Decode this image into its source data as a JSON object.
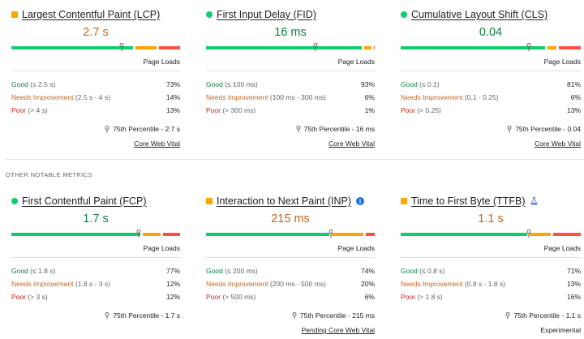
{
  "colors": {
    "good": "#0cce6b",
    "needs_improvement": "#ffa400",
    "poor": "#ff4e42",
    "value_good": "#0a8043",
    "value_ni": "#c4651d",
    "info_blue": "#1a73e8",
    "flask_blue": "#5b7ff2"
  },
  "section_header": "OTHER NOTABLE METRICS",
  "metrics": [
    {
      "title": "Largest Contentful Paint (LCP)",
      "indicator": "square",
      "status": "needs_improvement",
      "value": "2.7 s",
      "marker_fraction": 0.655,
      "segments": {
        "good": 0.73,
        "needs_improvement": 0.14,
        "poor": 0.13
      },
      "page_loads_label": "Page Loads",
      "good_label": "Good",
      "good_range": "(≤ 2.5 s)",
      "good_pct": "73%",
      "ni_label": "Needs Improvement",
      "ni_range": "(2.5 s - 4 s)",
      "ni_pct": "14%",
      "poor_label": "Poor",
      "poor_range": "(> 4 s)",
      "poor_pct": "13%",
      "percentile": "75th Percentile - 2.7 s",
      "footer": "Core Web Vital",
      "footer_link": true,
      "extra_icon": ""
    },
    {
      "title": "First Input Delay (FID)",
      "indicator": "circle",
      "status": "good",
      "value": "16 ms",
      "marker_fraction": 0.65,
      "segments": {
        "good": 0.93,
        "needs_improvement": 0.06,
        "poor": 0.01
      },
      "page_loads_label": "Page Loads",
      "good_label": "Good",
      "good_range": "(≤ 100 ms)",
      "good_pct": "93%",
      "ni_label": "Needs Improvement",
      "ni_range": "(100 ms - 300 ms)",
      "ni_pct": "6%",
      "poor_label": "Poor",
      "poor_range": "(> 300 ms)",
      "poor_pct": "1%",
      "percentile": "75th Percentile - 16 ms",
      "footer": "Core Web Vital",
      "footer_link": true,
      "extra_icon": ""
    },
    {
      "title": "Cumulative Layout Shift (CLS)",
      "indicator": "circle",
      "status": "good",
      "value": "0.04",
      "marker_fraction": 0.71,
      "segments": {
        "good": 0.81,
        "needs_improvement": 0.06,
        "poor": 0.13
      },
      "page_loads_label": "Page Loads",
      "good_label": "Good",
      "good_range": "(≤ 0.1)",
      "good_pct": "81%",
      "ni_label": "Needs Improvement",
      "ni_range": "(0.1 - 0.25)",
      "ni_pct": "6%",
      "poor_label": "Poor",
      "poor_range": "(> 0.25)",
      "poor_pct": "13%",
      "percentile": "75th Percentile - 0.04",
      "footer": "Core Web Vital",
      "footer_link": true,
      "extra_icon": ""
    },
    {
      "title": "First Contentful Paint (FCP)",
      "indicator": "circle",
      "status": "good",
      "value": "1.7 s",
      "marker_fraction": 0.755,
      "segments": {
        "good": 0.77,
        "needs_improvement": 0.12,
        "poor": 0.12
      },
      "page_loads_label": "Page Loads",
      "good_label": "Good",
      "good_range": "(≤ 1.8 s)",
      "good_pct": "77%",
      "ni_label": "Needs Improvement",
      "ni_range": "(1.8 s - 3 s)",
      "ni_pct": "12%",
      "poor_label": "Poor",
      "poor_range": "(> 3 s)",
      "poor_pct": "12%",
      "percentile": "75th Percentile - 1.7 s",
      "footer": "",
      "footer_link": false,
      "extra_icon": ""
    },
    {
      "title": "Interaction to Next Paint (INP)",
      "indicator": "square",
      "status": "needs_improvement",
      "value": "215 ms",
      "marker_fraction": 0.74,
      "segments": {
        "good": 0.74,
        "needs_improvement": 0.2,
        "poor": 0.06
      },
      "page_loads_label": "Page Loads",
      "good_label": "Good",
      "good_range": "(≤ 200 ms)",
      "good_pct": "74%",
      "ni_label": "Needs Improvement",
      "ni_range": "(200 ms - 500 ms)",
      "ni_pct": "20%",
      "poor_label": "Poor",
      "poor_range": "(> 500 ms)",
      "poor_pct": "6%",
      "percentile": "75th Percentile - 215 ms",
      "footer": "Pending Core Web Vital",
      "footer_link": true,
      "extra_icon": "info-icon"
    },
    {
      "title": "Time to First Byte (TTFB)",
      "indicator": "square",
      "status": "needs_improvement",
      "value": "1.1 s",
      "marker_fraction": 0.71,
      "segments": {
        "good": 0.71,
        "needs_improvement": 0.13,
        "poor": 0.16
      },
      "page_loads_label": "Page Loads",
      "good_label": "Good",
      "good_range": "(≤ 0.8 s)",
      "good_pct": "71%",
      "ni_label": "Needs Improvement",
      "ni_range": "(0.8 s - 1.8 s)",
      "ni_pct": "13%",
      "poor_label": "Poor",
      "poor_range": "(> 1.8 s)",
      "poor_pct": "16%",
      "percentile": "75th Percentile - 1.1 s",
      "footer": "Experimental",
      "footer_link": false,
      "extra_icon": "flask-icon"
    }
  ]
}
